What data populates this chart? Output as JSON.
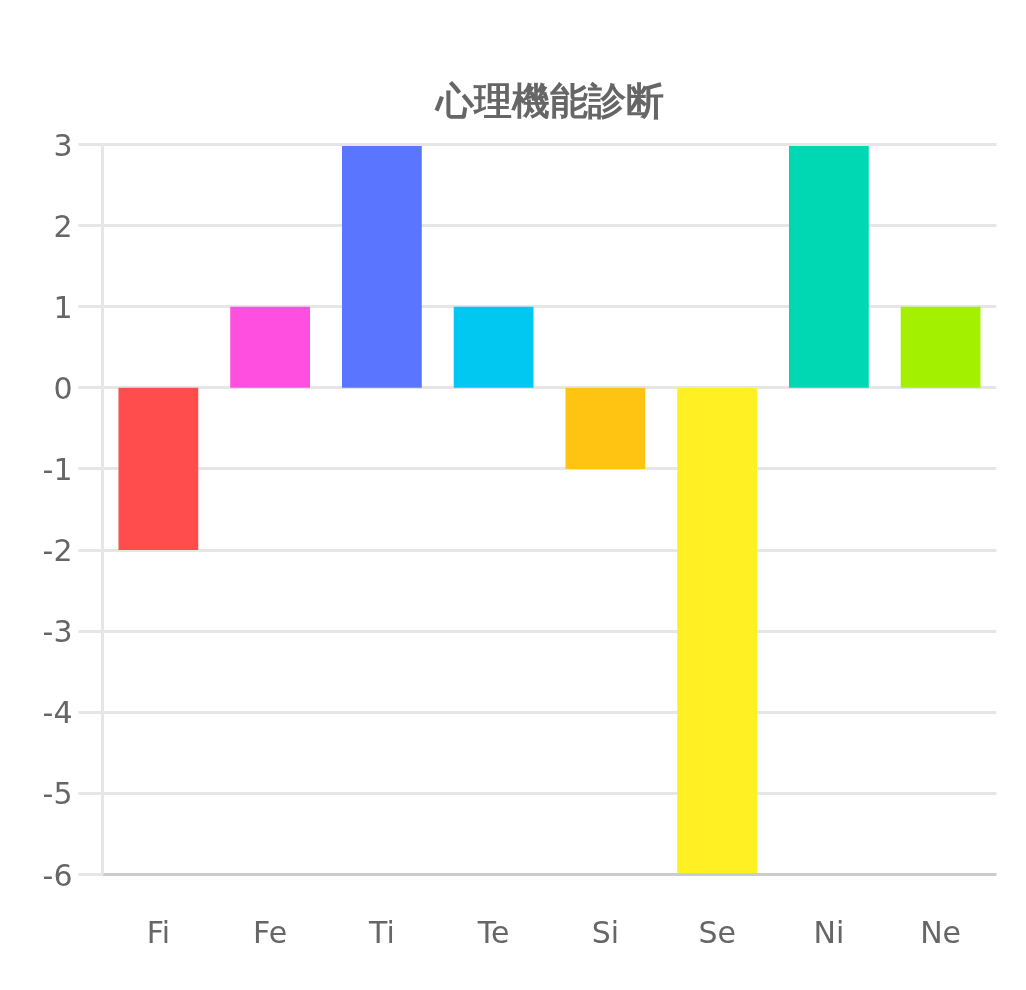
{
  "chart_data": {
    "type": "bar",
    "title": "心理機能診断",
    "categories": [
      "Fi",
      "Fe",
      "Ti",
      "Te",
      "Si",
      "Se",
      "Ni",
      "Ne"
    ],
    "values": [
      -2,
      1,
      3,
      1,
      -1,
      -6,
      3,
      1
    ],
    "colors": [
      "#ff4d4d",
      "#ff4fe0",
      "#5a75ff",
      "#00c8f0",
      "#ffc312",
      "#fff023",
      "#00d8b4",
      "#a3f000"
    ],
    "ylim": [
      -6,
      3
    ],
    "yticks": [
      -6,
      -5,
      -4,
      -3,
      -2,
      -1,
      0,
      1,
      2,
      3
    ],
    "grid": "y"
  }
}
